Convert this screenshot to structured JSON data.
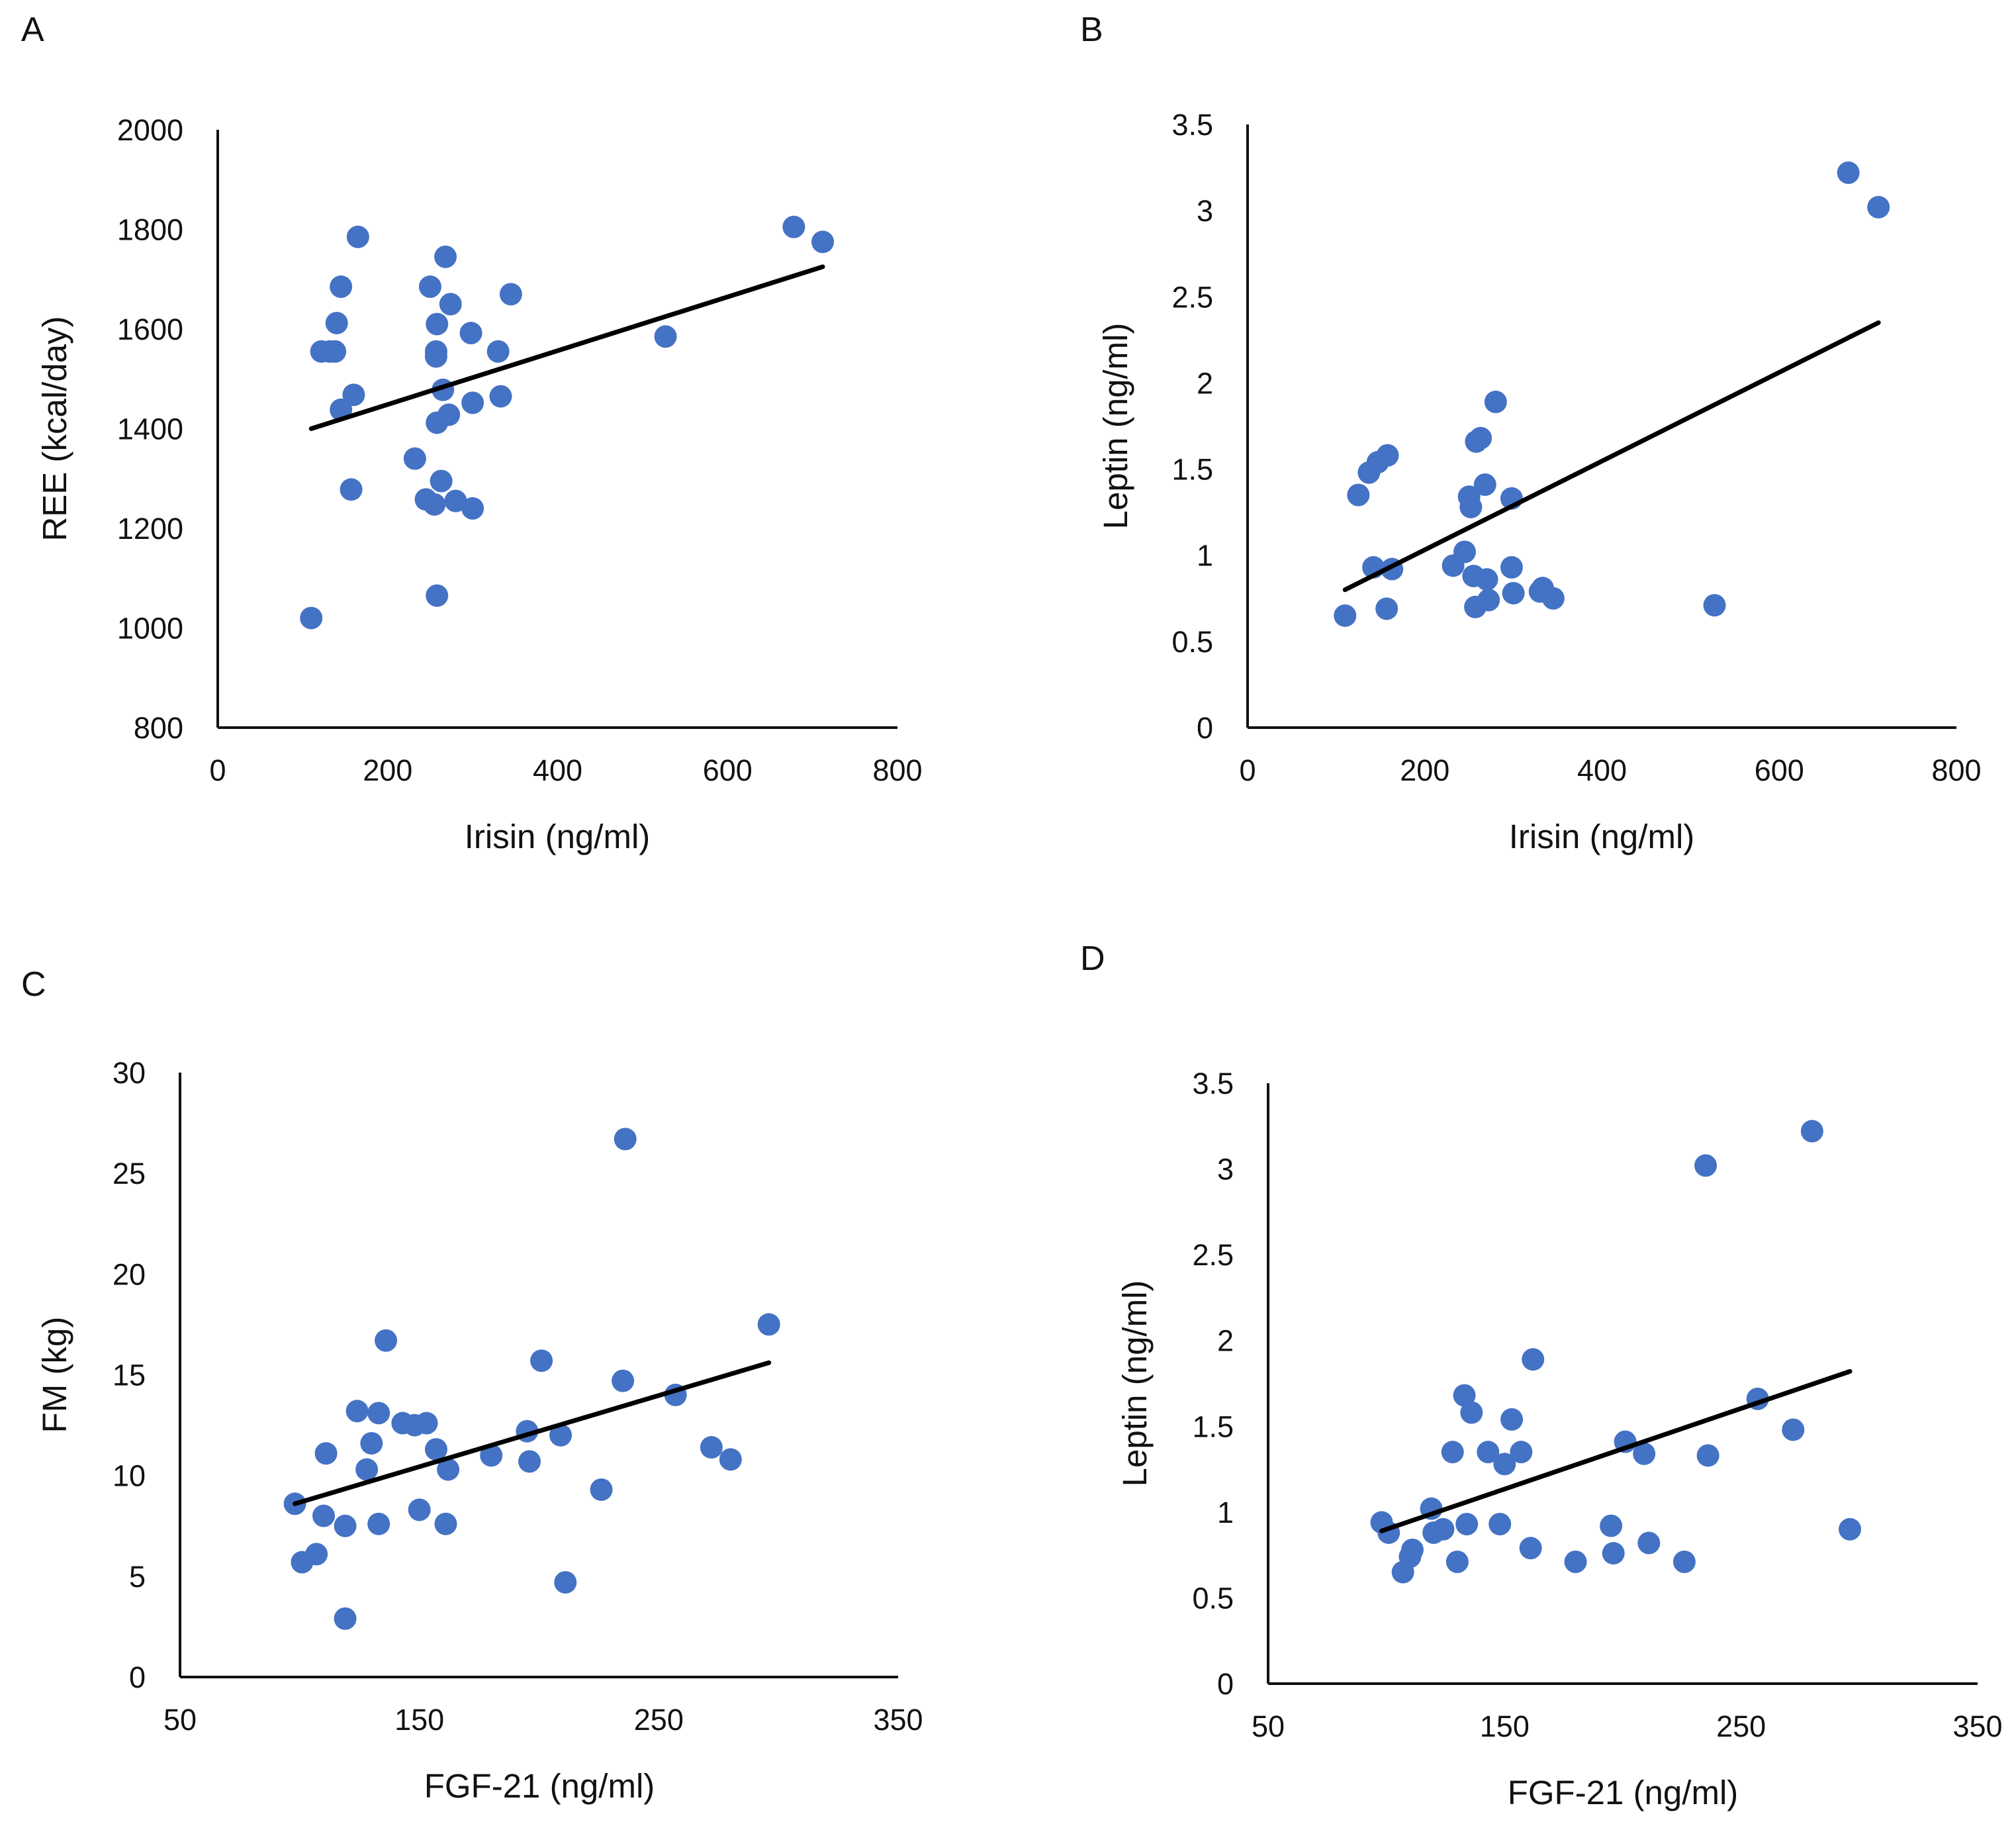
{
  "figure": {
    "panels": [
      "A",
      "B",
      "C",
      "D"
    ]
  },
  "colors": {
    "point": "#4472C4",
    "trendline": "#000000",
    "axis": "#111111"
  },
  "chart_data": [
    {
      "id": "A",
      "label": "A",
      "type": "scatter",
      "xlabel": "Irisin (ng/ml)",
      "ylabel": "REE (kcal/day)",
      "xlim": [
        0,
        800
      ],
      "ylim": [
        800,
        2000
      ],
      "xticks": [
        0,
        200,
        400,
        600,
        800
      ],
      "yticks": [
        800,
        1000,
        1200,
        1400,
        1600,
        1800,
        2000
      ],
      "ytick_labels": [
        "800",
        "1000",
        "1200",
        "1400",
        "1600",
        "1800",
        "2000"
      ],
      "points": [
        [
          110,
          1020
        ],
        [
          122,
          1555
        ],
        [
          132,
          1555
        ],
        [
          138,
          1555
        ],
        [
          140,
          1612
        ],
        [
          145,
          1438
        ],
        [
          145,
          1685
        ],
        [
          157,
          1278
        ],
        [
          160,
          1468
        ],
        [
          165,
          1785
        ],
        [
          232,
          1340
        ],
        [
          245,
          1258
        ],
        [
          250,
          1685
        ],
        [
          255,
          1248
        ],
        [
          257,
          1545
        ],
        [
          257,
          1555
        ],
        [
          258,
          1065
        ],
        [
          258,
          1412
        ],
        [
          258,
          1610
        ],
        [
          263,
          1295
        ],
        [
          265,
          1478
        ],
        [
          268,
          1745
        ],
        [
          272,
          1428
        ],
        [
          274,
          1650
        ],
        [
          280,
          1255
        ],
        [
          298,
          1592
        ],
        [
          300,
          1240
        ],
        [
          300,
          1452
        ],
        [
          330,
          1555
        ],
        [
          333,
          1465
        ],
        [
          345,
          1670
        ],
        [
          527,
          1585
        ],
        [
          678,
          1805
        ],
        [
          712,
          1775
        ]
      ],
      "trendline": [
        [
          110,
          1400
        ],
        [
          712,
          1725
        ]
      ]
    },
    {
      "id": "B",
      "label": "B",
      "type": "scatter",
      "xlabel": "Irisin (ng/ml)",
      "ylabel": "Leptin (ng/ml)",
      "xlim": [
        0,
        800
      ],
      "ylim": [
        0,
        3.5
      ],
      "xticks": [
        0,
        200,
        400,
        600,
        800
      ],
      "yticks": [
        0,
        0.5,
        1,
        1.5,
        2,
        2.5,
        3,
        3.5
      ],
      "ytick_labels": [
        "0",
        "0.5",
        "1",
        "1.5",
        "2",
        "2.5",
        "3",
        "3.5"
      ],
      "points": [
        [
          110,
          0.65
        ],
        [
          125,
          1.35
        ],
        [
          137,
          1.48
        ],
        [
          142,
          0.93
        ],
        [
          147,
          1.54
        ],
        [
          157,
          0.69
        ],
        [
          158,
          1.58
        ],
        [
          163,
          0.92
        ],
        [
          232,
          0.94
        ],
        [
          245,
          1.02
        ],
        [
          250,
          1.34
        ],
        [
          252,
          1.28
        ],
        [
          255,
          0.88
        ],
        [
          257,
          0.7
        ],
        [
          258,
          1.66
        ],
        [
          263,
          1.68
        ],
        [
          268,
          1.41
        ],
        [
          270,
          0.86
        ],
        [
          272,
          0.74
        ],
        [
          280,
          1.89
        ],
        [
          298,
          0.93
        ],
        [
          298,
          1.33
        ],
        [
          300,
          0.78
        ],
        [
          330,
          0.79
        ],
        [
          333,
          0.81
        ],
        [
          345,
          0.75
        ],
        [
          527,
          0.71
        ],
        [
          678,
          3.22
        ],
        [
          712,
          3.02
        ]
      ],
      "trendline": [
        [
          110,
          0.8
        ],
        [
          712,
          2.35
        ]
      ]
    },
    {
      "id": "C",
      "label": "C",
      "type": "scatter",
      "xlabel": "FGF-21 (ng/ml)",
      "ylabel": "FM (kg)",
      "xlim": [
        50,
        350
      ],
      "ylim": [
        0,
        30
      ],
      "xticks": [
        50,
        150,
        250,
        350
      ],
      "yticks": [
        0,
        5,
        10,
        15,
        20,
        25,
        30
      ],
      "ytick_labels": [
        "0",
        "5",
        "10",
        "15",
        "20",
        "25",
        "30"
      ],
      "points": [
        [
          98,
          8.6
        ],
        [
          101,
          5.7
        ],
        [
          107,
          6.1
        ],
        [
          110,
          8.0
        ],
        [
          111,
          11.1
        ],
        [
          119,
          7.5
        ],
        [
          119,
          2.9
        ],
        [
          124,
          13.2
        ],
        [
          128,
          10.3
        ],
        [
          130,
          11.6
        ],
        [
          133,
          7.6
        ],
        [
          133,
          13.1
        ],
        [
          136,
          16.7
        ],
        [
          143,
          12.6
        ],
        [
          148,
          12.5
        ],
        [
          150,
          8.3
        ],
        [
          153,
          12.6
        ],
        [
          157,
          11.3
        ],
        [
          161,
          7.6
        ],
        [
          162,
          10.3
        ],
        [
          180,
          11.0
        ],
        [
          195,
          12.2
        ],
        [
          196,
          10.7
        ],
        [
          201,
          15.7
        ],
        [
          209,
          12.0
        ],
        [
          211,
          4.7
        ],
        [
          226,
          9.3
        ],
        [
          235,
          14.7
        ],
        [
          236,
          26.7
        ],
        [
          257,
          14.0
        ],
        [
          272,
          11.4
        ],
        [
          280,
          10.8
        ],
        [
          296,
          17.5
        ]
      ],
      "trendline": [
        [
          98,
          8.6
        ],
        [
          296,
          15.6
        ]
      ]
    },
    {
      "id": "D",
      "label": "D",
      "type": "scatter",
      "xlabel": "FGF-21 (ng/ml)",
      "ylabel": "Leptin (ng/ml)",
      "xlim": [
        50,
        350
      ],
      "ylim": [
        0,
        3.5
      ],
      "xticks": [
        50,
        150,
        250,
        350
      ],
      "yticks": [
        0,
        0.5,
        1,
        1.5,
        2,
        2.5,
        3,
        3.5
      ],
      "ytick_labels": [
        "0",
        "0.5",
        "1",
        "1.5",
        "2",
        "2.5",
        "3",
        "3.5"
      ],
      "points": [
        [
          98,
          0.94
        ],
        [
          101,
          0.88
        ],
        [
          107,
          0.65
        ],
        [
          110,
          0.74
        ],
        [
          111,
          0.78
        ],
        [
          119,
          1.02
        ],
        [
          120,
          0.88
        ],
        [
          124,
          0.9
        ],
        [
          128,
          1.35
        ],
        [
          130,
          0.71
        ],
        [
          133,
          1.68
        ],
        [
          134,
          0.93
        ],
        [
          136,
          1.58
        ],
        [
          143,
          1.35
        ],
        [
          148,
          0.93
        ],
        [
          150,
          1.28
        ],
        [
          153,
          1.54
        ],
        [
          157,
          1.35
        ],
        [
          161,
          0.79
        ],
        [
          162,
          1.89
        ],
        [
          180,
          0.71
        ],
        [
          195,
          0.92
        ],
        [
          196,
          0.76
        ],
        [
          201,
          1.41
        ],
        [
          209,
          1.34
        ],
        [
          211,
          0.82
        ],
        [
          226,
          0.71
        ],
        [
          235,
          3.02
        ],
        [
          236,
          1.33
        ],
        [
          257,
          1.66
        ],
        [
          272,
          1.48
        ],
        [
          280,
          3.22
        ],
        [
          296,
          0.9
        ]
      ],
      "trendline": [
        [
          98,
          0.89
        ],
        [
          296,
          1.82
        ]
      ]
    }
  ]
}
